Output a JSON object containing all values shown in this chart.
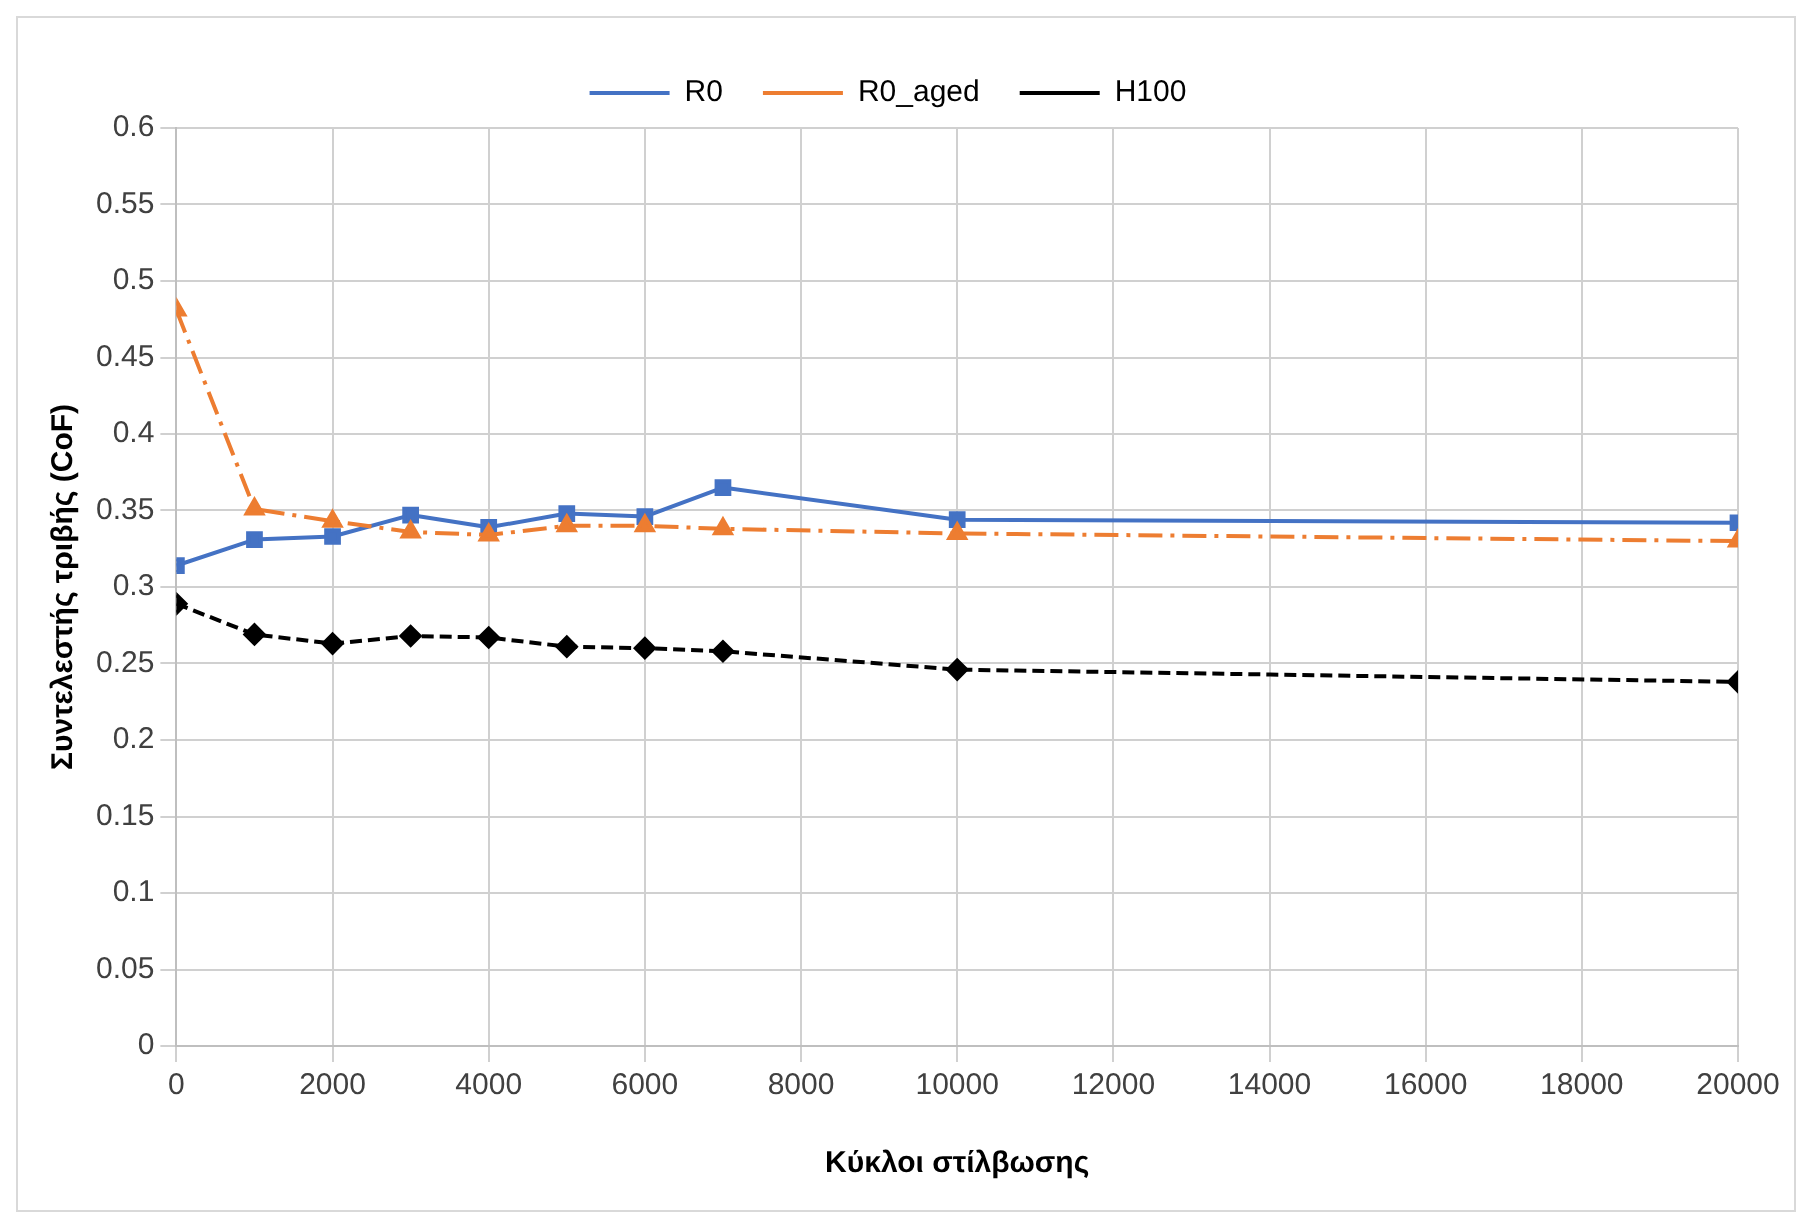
{
  "chart_data": {
    "type": "line",
    "xlabel": "Κύκλοι στίλβωσης",
    "ylabel": "Συντελεστής τριβής (CoF)",
    "x": [
      0,
      1000,
      2000,
      3000,
      4000,
      5000,
      6000,
      7000,
      10000,
      20000
    ],
    "series": [
      {
        "name": "R0",
        "color": "#4472c4",
        "marker": "square",
        "line_style": "solid",
        "values": [
          0.314,
          0.331,
          0.333,
          0.347,
          0.339,
          0.348,
          0.346,
          0.365,
          0.344,
          0.342
        ]
      },
      {
        "name": "R0_aged",
        "color": "#ed7d31",
        "marker": "triangle",
        "line_style": "dashed",
        "values": [
          0.481,
          0.351,
          0.343,
          0.336,
          0.334,
          0.34,
          0.34,
          0.338,
          0.335,
          0.33
        ]
      },
      {
        "name": "H100",
        "color": "#000000",
        "marker": "diamond",
        "line_style": "dashed",
        "values": [
          0.289,
          0.269,
          0.263,
          0.268,
          0.267,
          0.261,
          0.26,
          0.258,
          0.246,
          0.238
        ]
      }
    ],
    "xlim": [
      0,
      20000
    ],
    "xticks": [
      0,
      2000,
      4000,
      6000,
      8000,
      10000,
      12000,
      14000,
      16000,
      18000,
      20000
    ],
    "ylim": [
      0,
      0.6
    ],
    "yticks": [
      0,
      0.05,
      0.1,
      0.15,
      0.2,
      0.25,
      0.3,
      0.35,
      0.4,
      0.45,
      0.5,
      0.55,
      0.6
    ],
    "grid": true,
    "legend": "top"
  }
}
